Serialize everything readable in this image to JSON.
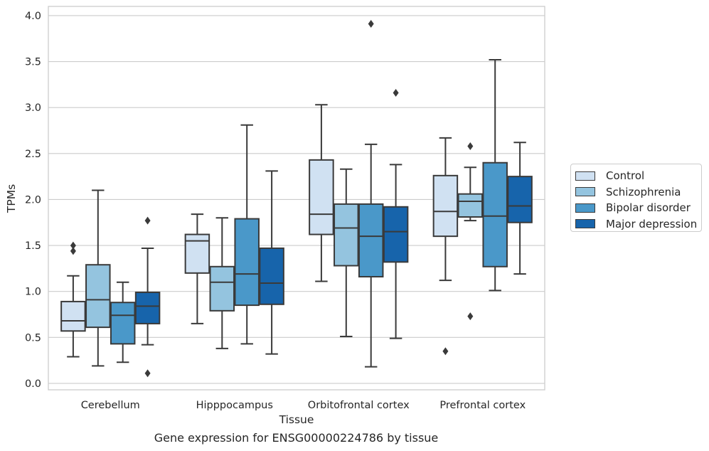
{
  "caption": "Gene expression for ENSG00000224786 by tissue",
  "chart_data": {
    "type": "box",
    "xlabel": "Tissue",
    "ylabel": "TPMs",
    "ylim": [
      -0.07,
      4.1
    ],
    "yticks": [
      "0.0",
      "0.5",
      "1.0",
      "1.5",
      "2.0",
      "2.5",
      "3.0",
      "3.5",
      "4.0"
    ],
    "grid": true,
    "legend_position": "right",
    "categories": [
      "Cerebellum",
      "Hipppocampus",
      "Orbitofrontal cortex",
      "Prefrontal cortex"
    ],
    "series": [
      {
        "name": "Control",
        "color": "#d0e1f2",
        "boxes": [
          {
            "whisker_low": 0.29,
            "q1": 0.57,
            "median": 0.68,
            "q3": 0.89,
            "whisker_high": 1.17,
            "outliers": [
              1.44,
              1.5
            ]
          },
          {
            "whisker_low": 0.65,
            "q1": 1.2,
            "median": 1.55,
            "q3": 1.62,
            "whisker_high": 1.84,
            "outliers": []
          },
          {
            "whisker_low": 1.11,
            "q1": 1.62,
            "median": 1.84,
            "q3": 2.43,
            "whisker_high": 3.03,
            "outliers": []
          },
          {
            "whisker_low": 1.12,
            "q1": 1.6,
            "median": 1.87,
            "q3": 2.26,
            "whisker_high": 2.67,
            "outliers": [
              0.35
            ]
          }
        ]
      },
      {
        "name": "Schizophrenia",
        "color": "#94c4df",
        "boxes": [
          {
            "whisker_low": 0.19,
            "q1": 0.61,
            "median": 0.91,
            "q3": 1.29,
            "whisker_high": 2.1,
            "outliers": []
          },
          {
            "whisker_low": 0.38,
            "q1": 0.79,
            "median": 1.1,
            "q3": 1.27,
            "whisker_high": 1.8,
            "outliers": []
          },
          {
            "whisker_low": 0.51,
            "q1": 1.28,
            "median": 1.69,
            "q3": 1.95,
            "whisker_high": 2.33,
            "outliers": []
          },
          {
            "whisker_low": 1.77,
            "q1": 1.81,
            "median": 1.98,
            "q3": 2.06,
            "whisker_high": 2.35,
            "outliers": [
              2.58,
              0.73
            ]
          }
        ]
      },
      {
        "name": "Bipolar disorder",
        "color": "#4a98c9",
        "boxes": [
          {
            "whisker_low": 0.23,
            "q1": 0.43,
            "median": 0.74,
            "q3": 0.88,
            "whisker_high": 1.1,
            "outliers": []
          },
          {
            "whisker_low": 0.43,
            "q1": 0.85,
            "median": 1.19,
            "q3": 1.79,
            "whisker_high": 2.81,
            "outliers": []
          },
          {
            "whisker_low": 0.18,
            "q1": 1.16,
            "median": 1.6,
            "q3": 1.95,
            "whisker_high": 2.6,
            "outliers": [
              3.91
            ]
          },
          {
            "whisker_low": 1.01,
            "q1": 1.27,
            "median": 1.82,
            "q3": 2.4,
            "whisker_high": 3.52,
            "outliers": []
          }
        ]
      },
      {
        "name": "Major depression",
        "color": "#1764ab",
        "boxes": [
          {
            "whisker_low": 0.42,
            "q1": 0.65,
            "median": 0.84,
            "q3": 0.99,
            "whisker_high": 1.47,
            "outliers": [
              1.77,
              0.11
            ]
          },
          {
            "whisker_low": 0.32,
            "q1": 0.86,
            "median": 1.09,
            "q3": 1.47,
            "whisker_high": 2.31,
            "outliers": []
          },
          {
            "whisker_low": 0.49,
            "q1": 1.32,
            "median": 1.65,
            "q3": 1.92,
            "whisker_high": 2.38,
            "outliers": [
              3.16
            ]
          },
          {
            "whisker_low": 1.19,
            "q1": 1.75,
            "median": 1.93,
            "q3": 2.25,
            "whisker_high": 2.62,
            "outliers": []
          }
        ]
      }
    ]
  }
}
